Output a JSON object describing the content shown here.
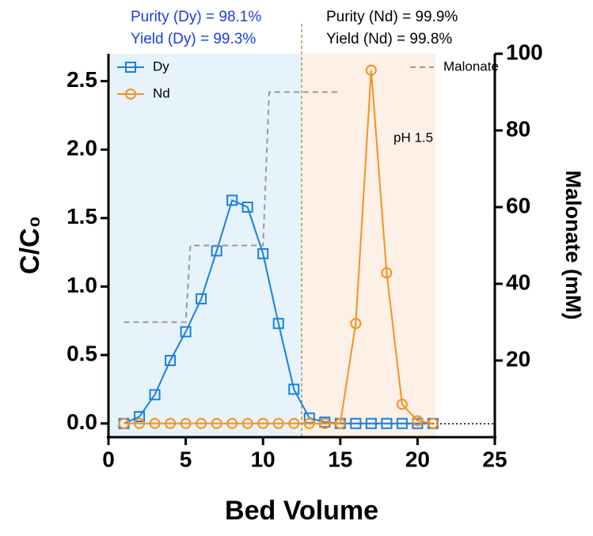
{
  "chart_data": {
    "type": "line",
    "xlabel": "Bed Volume",
    "ylabel": "C/C₀",
    "y2label": "Malonate (mM)",
    "xlim": [
      0,
      25
    ],
    "xticks": [
      0,
      5,
      10,
      15,
      20,
      25
    ],
    "ylim": [
      -0.1,
      2.7
    ],
    "yticks": [
      {
        "value": 0,
        "label": "0.0"
      },
      0.5,
      {
        "value": 1,
        "label": "1.0"
      },
      1.5,
      {
        "value": 2,
        "label": "2.0"
      },
      2.5
    ],
    "y2lim": [
      0,
      100
    ],
    "y2ticks": [
      20,
      40,
      60,
      80,
      100
    ],
    "series": [
      {
        "name": "Dy",
        "color": "#1a7fe3",
        "marker": "square",
        "x": [
          1,
          2,
          3,
          4,
          5,
          6,
          7,
          8,
          9,
          10,
          11,
          12,
          13,
          14,
          15,
          16,
          17,
          18,
          19,
          20,
          21
        ],
        "values": [
          0,
          0.05,
          0.21,
          0.46,
          0.67,
          0.91,
          1.26,
          1.63,
          1.58,
          1.24,
          0.73,
          0.25,
          0.04,
          0.01,
          0,
          0,
          0,
          0,
          0,
          0,
          0
        ]
      },
      {
        "name": "Nd",
        "color": "#f5911e",
        "marker": "circle",
        "x": [
          1,
          2,
          3,
          4,
          5,
          6,
          7,
          8,
          9,
          10,
          11,
          12,
          13,
          14,
          15,
          16,
          17,
          18,
          19,
          20,
          21
        ],
        "values": [
          0,
          0,
          0,
          0,
          0,
          0,
          0,
          0,
          0,
          0,
          0,
          0,
          0,
          0,
          0,
          0.73,
          2.58,
          1.1,
          0.14,
          0.02,
          0
        ]
      },
      {
        "name": "Malonate",
        "color": "#999999",
        "marker": "dash",
        "axis": "y2",
        "x": [
          1,
          5,
          5.3,
          10,
          10.4,
          15
        ],
        "values": [
          30,
          30,
          50,
          50,
          90,
          90
        ]
      }
    ],
    "annotations": [
      "Purity (Dy) =  98.1%",
      "Yield (Dy) = 99.3%",
      "Purity (Nd) =  99.9%",
      "Yield (Nd) = 99.8%",
      "pH 1.5"
    ]
  }
}
